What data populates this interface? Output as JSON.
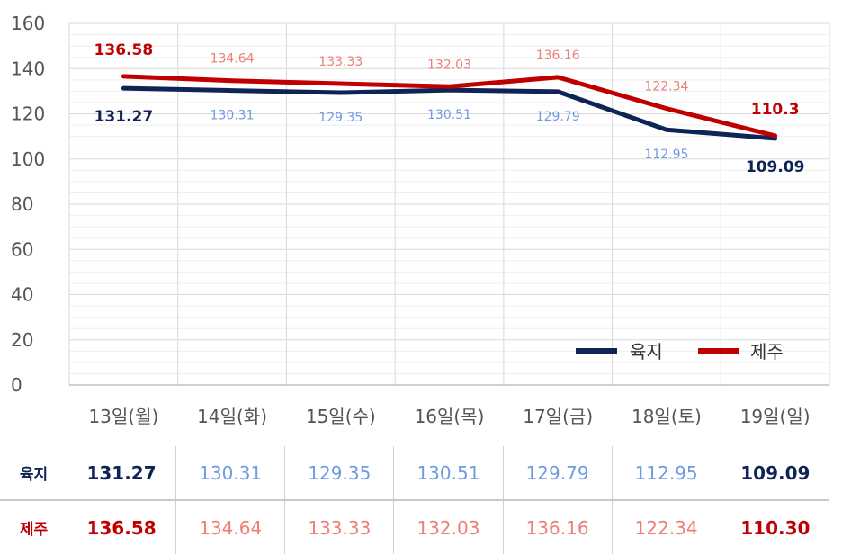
{
  "chart_data": {
    "type": "line",
    "categories": [
      "13일(월)",
      "14일(화)",
      "15일(수)",
      "16일(목)",
      "17일(금)",
      "18일(토)",
      "19일(일)"
    ],
    "series": [
      {
        "name": "육지",
        "values": [
          131.27,
          130.31,
          129.35,
          130.51,
          129.79,
          112.95,
          109.09
        ],
        "labels": [
          "131.27",
          "130.31",
          "129.35",
          "130.51",
          "129.79",
          "112.95",
          "109.09"
        ],
        "color": "#0f2357",
        "light_color": "#6f9be0"
      },
      {
        "name": "제주",
        "values": [
          136.58,
          134.64,
          133.33,
          132.03,
          136.16,
          122.34,
          110.3
        ],
        "labels": [
          "136.58",
          "134.64",
          "133.33",
          "132.03",
          "136.16",
          "122.34",
          "110.3"
        ],
        "color": "#c00000",
        "light_color": "#ec7f78"
      }
    ],
    "yticks": [
      "0",
      "20",
      "40",
      "60",
      "80",
      "100",
      "120",
      "140",
      "160"
    ],
    "ylim": [
      0,
      160
    ],
    "grid": true,
    "legend_position": "bottom-right"
  },
  "table": {
    "rows": [
      {
        "label": "육지",
        "cells": [
          "131.27",
          "130.31",
          "129.35",
          "130.51",
          "129.79",
          "112.95",
          "109.09"
        ]
      },
      {
        "label": "제주",
        "cells": [
          "136.58",
          "134.64",
          "133.33",
          "132.03",
          "136.16",
          "122.34",
          "110.30"
        ]
      }
    ]
  }
}
